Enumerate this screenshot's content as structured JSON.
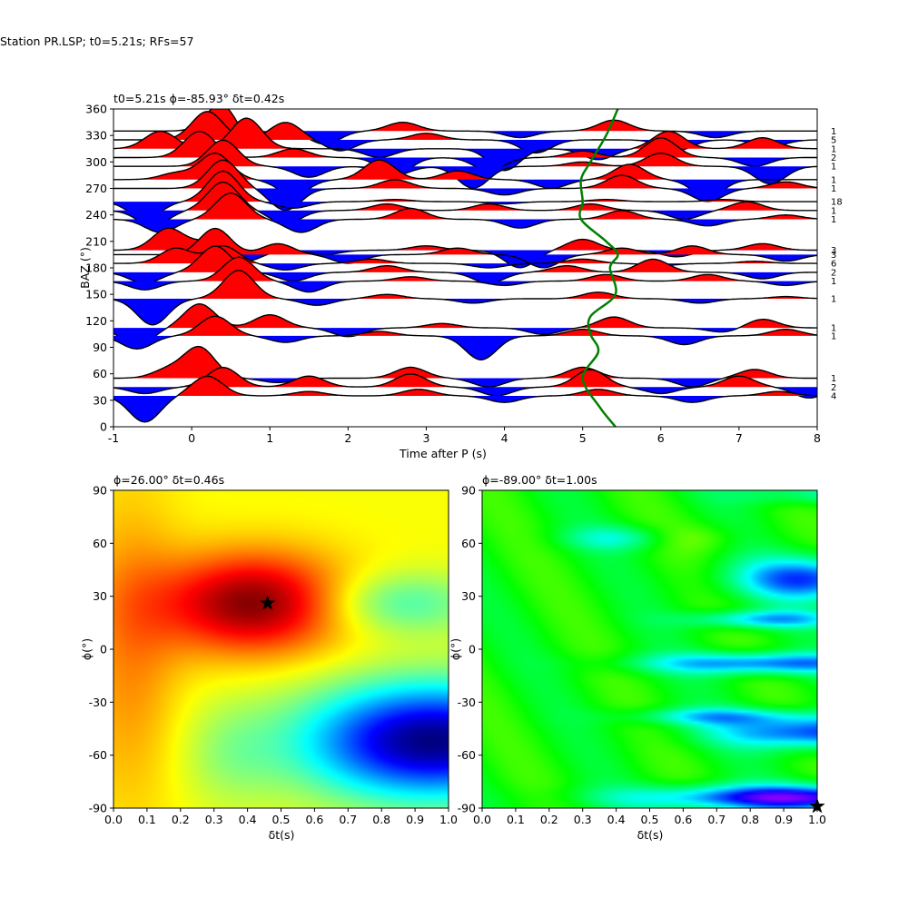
{
  "suptitle": "Station PR.LSP; t0=5.21s; RFs=57",
  "chart_data": [
    {
      "type": "line",
      "title": "t0=5.21s ϕ=-85.93° δt=0.42s",
      "xlabel": "Time after P (s)",
      "ylabel": "BAZ (°)",
      "xlim": [
        -1,
        8
      ],
      "ylim": [
        0,
        360
      ],
      "xticks": [
        -1,
        0,
        1,
        2,
        3,
        4,
        5,
        6,
        7,
        8
      ],
      "yticks": [
        0,
        30,
        60,
        90,
        120,
        150,
        180,
        210,
        240,
        270,
        300,
        330,
        360
      ],
      "fill_colors": {
        "positive": "#ff0000",
        "negative": "#0000ff"
      },
      "curve_color": "#008000",
      "traces": [
        {
          "baz": 335,
          "count": "1",
          "peaks": [
            [
              0.4,
              1.4
            ],
            [
              0.7,
              -0.6
            ],
            [
              1.7,
              -0.6
            ],
            [
              2.7,
              0.4
            ],
            [
              4.2,
              -0.3
            ],
            [
              5.4,
              0.5
            ],
            [
              6.7,
              -0.3
            ]
          ]
        },
        {
          "baz": 325,
          "count": "5",
          "peaks": [
            [
              0.2,
              1.3
            ],
            [
              1.2,
              0.8
            ],
            [
              1.9,
              -0.5
            ],
            [
              3.0,
              0.3
            ],
            [
              4.4,
              -0.6
            ],
            [
              6.2,
              -0.5
            ],
            [
              7.4,
              -0.3
            ]
          ]
        },
        {
          "baz": 315,
          "count": "1",
          "peaks": [
            [
              -0.4,
              0.8
            ],
            [
              0.7,
              1.4
            ],
            [
              2.4,
              -0.4
            ],
            [
              4.0,
              -1.0
            ],
            [
              5.2,
              -0.5
            ],
            [
              6.1,
              0.8
            ],
            [
              7.3,
              0.5
            ]
          ]
        },
        {
          "baz": 305,
          "count": "2",
          "peaks": [
            [
              0.1,
              1.2
            ],
            [
              1.3,
              0.4
            ],
            [
              2.6,
              -0.8
            ],
            [
              3.8,
              -0.6
            ],
            [
              5.0,
              0.3
            ],
            [
              6.0,
              0.9
            ],
            [
              7.2,
              -0.4
            ]
          ]
        },
        {
          "baz": 295,
          "count": "1",
          "peaks": [
            [
              0.4,
              1.2
            ],
            [
              1.5,
              -0.5
            ],
            [
              2.6,
              -0.4
            ],
            [
              3.6,
              -1.0
            ],
            [
              5.0,
              0.2
            ],
            [
              6.0,
              0.6
            ],
            [
              7.4,
              -0.8
            ]
          ]
        },
        {
          "baz": 280,
          "count": "1",
          "peaks": [
            [
              -0.2,
              0.3
            ],
            [
              0.3,
              1.2
            ],
            [
              1.3,
              -0.7
            ],
            [
              2.4,
              0.9
            ],
            [
              3.4,
              0.4
            ],
            [
              4.6,
              -0.4
            ],
            [
              5.6,
              0.7
            ],
            [
              6.6,
              -0.8
            ]
          ]
        },
        {
          "baz": 270,
          "count": "1",
          "peaks": [
            [
              0.4,
              1.3
            ],
            [
              1.2,
              -1.0
            ],
            [
              2.6,
              0.4
            ],
            [
              4.0,
              -0.3
            ],
            [
              5.5,
              0.6
            ],
            [
              6.6,
              -0.6
            ],
            [
              7.6,
              0.3
            ]
          ]
        },
        {
          "baz": 255,
          "count": "18",
          "peaks": [
            [
              -0.6,
              -0.8
            ],
            [
              0.4,
              1.4
            ],
            [
              1.3,
              -0.3
            ],
            [
              2.6,
              0.1
            ],
            [
              4.0,
              -0.1
            ],
            [
              5.3,
              0.1
            ],
            [
              6.8,
              0.1
            ]
          ]
        },
        {
          "baz": 245,
          "count": "1",
          "peaks": [
            [
              -0.5,
              -0.7
            ],
            [
              0.4,
              1.3
            ],
            [
              1.2,
              -0.6
            ],
            [
              2.5,
              0.3
            ],
            [
              3.8,
              0.3
            ],
            [
              5.1,
              0.3
            ],
            [
              6.3,
              -0.4
            ],
            [
              7.1,
              0.4
            ]
          ]
        },
        {
          "baz": 235,
          "count": "1",
          "peaks": [
            [
              -0.4,
              -0.6
            ],
            [
              0.5,
              1.2
            ],
            [
              1.4,
              -0.6
            ],
            [
              2.8,
              0.5
            ],
            [
              4.2,
              -0.4
            ],
            [
              5.5,
              0.4
            ],
            [
              6.6,
              -0.3
            ],
            [
              7.6,
              0.2
            ]
          ]
        },
        {
          "baz": 200,
          "count": "3",
          "peaks": [
            [
              -0.3,
              1.0
            ],
            [
              0.2,
              0.4
            ],
            [
              0.7,
              -0.5
            ],
            [
              1.7,
              -0.2
            ],
            [
              3.0,
              0.2
            ],
            [
              4.2,
              -0.8
            ],
            [
              5.0,
              0.5
            ],
            [
              6.2,
              -0.3
            ],
            [
              7.3,
              0.3
            ]
          ]
        },
        {
          "baz": 195,
          "count": "3",
          "peaks": [
            [
              0.3,
              1.2
            ],
            [
              1.1,
              0.5
            ],
            [
              2.0,
              -0.4
            ],
            [
              3.4,
              0.3
            ],
            [
              4.5,
              -0.6
            ],
            [
              5.5,
              0.3
            ],
            [
              6.4,
              0.4
            ],
            [
              7.6,
              -0.3
            ]
          ]
        },
        {
          "baz": 185,
          "count": "6",
          "peaks": [
            [
              -0.2,
              0.7
            ],
            [
              0.4,
              0.8
            ],
            [
              1.2,
              -0.3
            ],
            [
              2.3,
              0.2
            ],
            [
              3.8,
              -0.2
            ],
            [
              5.0,
              0.2
            ],
            [
              6.0,
              -0.1
            ],
            [
              7.2,
              0.1
            ]
          ]
        },
        {
          "baz": 175,
          "count": "2",
          "peaks": [
            [
              -0.6,
              -0.5
            ],
            [
              0.3,
              1.2
            ],
            [
              1.3,
              -0.4
            ],
            [
              2.5,
              0.3
            ],
            [
              3.8,
              -0.5
            ],
            [
              4.8,
              0.3
            ],
            [
              5.9,
              0.6
            ],
            [
              7.3,
              -0.3
            ]
          ]
        },
        {
          "baz": 165,
          "count": "1",
          "peaks": [
            [
              -0.6,
              -0.4
            ],
            [
              0.6,
              1.1
            ],
            [
              1.5,
              -0.5
            ],
            [
              2.8,
              0.2
            ],
            [
              4.0,
              -0.2
            ],
            [
              5.3,
              0.3
            ],
            [
              6.6,
              0.3
            ],
            [
              7.6,
              -0.2
            ]
          ]
        },
        {
          "baz": 145,
          "count": "1",
          "peaks": [
            [
              -0.5,
              -1.2
            ],
            [
              0.6,
              1.3
            ],
            [
              1.6,
              -0.3
            ],
            [
              2.5,
              0.2
            ],
            [
              3.6,
              -0.2
            ],
            [
              5.2,
              0.3
            ],
            [
              6.5,
              -0.2
            ],
            [
              7.6,
              0.1
            ]
          ]
        },
        {
          "baz": 112,
          "count": "1",
          "peaks": [
            [
              -0.7,
              -0.8
            ],
            [
              0.1,
              1.1
            ],
            [
              1.0,
              0.6
            ],
            [
              2.0,
              -0.4
            ],
            [
              3.2,
              0.2
            ],
            [
              4.5,
              -0.3
            ],
            [
              5.4,
              0.5
            ],
            [
              6.8,
              -0.2
            ],
            [
              7.3,
              0.4
            ]
          ]
        },
        {
          "baz": 103,
          "count": "1",
          "peaks": [
            [
              -0.7,
              -0.6
            ],
            [
              0.3,
              0.9
            ],
            [
              1.2,
              -0.3
            ],
            [
              2.4,
              0.2
            ],
            [
              3.7,
              -1.1
            ],
            [
              5.0,
              0.3
            ],
            [
              6.3,
              -0.4
            ],
            [
              7.6,
              0.3
            ]
          ]
        },
        {
          "baz": 55,
          "count": "1",
          "peaks": [
            [
              -0.3,
              0.4
            ],
            [
              0.1,
              1.4
            ],
            [
              1.1,
              -0.2
            ],
            [
              2.8,
              0.5
            ],
            [
              3.8,
              -0.4
            ],
            [
              5.0,
              0.5
            ],
            [
              6.4,
              -0.4
            ],
            [
              7.2,
              0.4
            ]
          ]
        },
        {
          "baz": 45,
          "count": "2",
          "peaks": [
            [
              -0.6,
              -0.3
            ],
            [
              0.4,
              0.9
            ],
            [
              1.5,
              0.5
            ],
            [
              2.8,
              0.6
            ],
            [
              3.9,
              -0.4
            ],
            [
              5.1,
              0.8
            ],
            [
              6.0,
              -0.3
            ],
            [
              7.0,
              0.5
            ],
            [
              7.9,
              -0.5
            ]
          ]
        },
        {
          "baz": 35,
          "count": "4",
          "peaks": [
            [
              -0.6,
              -1.2
            ],
            [
              0.2,
              0.9
            ],
            [
              1.5,
              0.2
            ],
            [
              2.9,
              0.3
            ],
            [
              4.0,
              -0.3
            ],
            [
              5.2,
              0.3
            ],
            [
              6.4,
              -0.3
            ],
            [
              7.5,
              0.2
            ]
          ]
        }
      ],
      "green_curve": [
        [
          5.42,
          0
        ],
        [
          5.22,
          22
        ],
        [
          5.0,
          55
        ],
        [
          5.2,
          85
        ],
        [
          5.1,
          105
        ],
        [
          5.1,
          125
        ],
        [
          5.42,
          150
        ],
        [
          5.35,
          180
        ],
        [
          5.45,
          195
        ],
        [
          5.3,
          210
        ],
        [
          4.98,
          235
        ],
        [
          5.0,
          255
        ],
        [
          4.98,
          280
        ],
        [
          5.1,
          300
        ],
        [
          5.3,
          330
        ],
        [
          5.45,
          360
        ]
      ]
    },
    {
      "type": "heatmap",
      "title": "ϕ=26.00° δt=0.46s",
      "xlabel": "δt(s)",
      "ylabel": "ϕ(°)",
      "xlim": [
        0,
        1
      ],
      "ylim": [
        -90,
        90
      ],
      "xticks": [
        "0.0",
        "0.1",
        "0.2",
        "0.3",
        "0.4",
        "0.5",
        "0.6",
        "0.7",
        "0.8",
        "0.9",
        "1.0"
      ],
      "yticks": [
        -90,
        -60,
        -30,
        0,
        30,
        60,
        90
      ],
      "colormap": "jet",
      "best": {
        "dt": 0.46,
        "phi": 26,
        "marker": "star"
      }
    },
    {
      "type": "heatmap",
      "title": "ϕ=-89.00° δt=1.00s",
      "xlabel": "δt(s)",
      "ylabel": "ϕ(°)",
      "xlim": [
        0,
        1
      ],
      "ylim": [
        -90,
        90
      ],
      "xticks": [
        "0.0",
        "0.1",
        "0.2",
        "0.3",
        "0.4",
        "0.5",
        "0.6",
        "0.7",
        "0.8",
        "0.9",
        "1.0"
      ],
      "yticks": [
        -90,
        -60,
        -30,
        0,
        30,
        60,
        90
      ],
      "colormap": "hsv",
      "best": {
        "dt": 1.0,
        "phi": -89,
        "marker": "star"
      }
    }
  ]
}
